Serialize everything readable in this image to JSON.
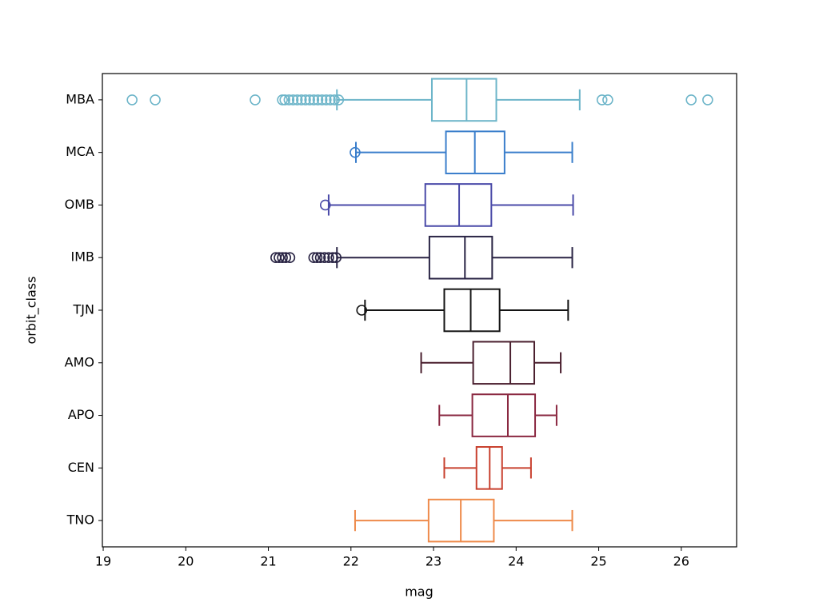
{
  "chart_data": {
    "type": "boxplot",
    "orientation": "horizontal",
    "xlabel": "mag",
    "ylabel": "orbit_class",
    "xlim": [
      18.99,
      26.67
    ],
    "xticks": [
      19,
      20,
      21,
      22,
      23,
      24,
      25,
      26
    ],
    "categories": [
      "MBA",
      "MCA",
      "OMB",
      "IMB",
      "TJN",
      "AMO",
      "APO",
      "CEN",
      "TNO"
    ],
    "boxes": [
      {
        "color": "#6db5c9",
        "whislo": 21.83,
        "q1": 22.98,
        "med": 23.4,
        "q3": 23.76,
        "whishi": 24.77,
        "fliers": [
          19.35,
          19.63,
          20.84,
          21.17,
          21.2,
          21.25,
          21.3,
          21.35,
          21.4,
          21.45,
          21.5,
          21.55,
          21.6,
          21.65,
          21.7,
          21.75,
          21.8,
          21.85,
          25.04,
          25.11,
          26.12,
          26.32
        ]
      },
      {
        "color": "#3a7ecb",
        "whislo": 22.06,
        "q1": 23.15,
        "med": 23.5,
        "q3": 23.86,
        "whishi": 24.68,
        "fliers": [
          22.05
        ]
      },
      {
        "color": "#4a4aa8",
        "whislo": 21.73,
        "q1": 22.9,
        "med": 23.31,
        "q3": 23.7,
        "whishi": 24.69,
        "fliers": [
          21.69
        ]
      },
      {
        "color": "#2a2545",
        "whislo": 21.83,
        "q1": 22.95,
        "med": 23.38,
        "q3": 23.71,
        "whishi": 24.68,
        "fliers": [
          21.09,
          21.13,
          21.17,
          21.21,
          21.26,
          21.55,
          21.59,
          21.63,
          21.68,
          21.73,
          21.78,
          21.82
        ]
      },
      {
        "color": "#141414",
        "whislo": 22.17,
        "q1": 23.13,
        "med": 23.45,
        "q3": 23.8,
        "whishi": 24.63,
        "fliers": [
          22.13
        ]
      },
      {
        "color": "#4a1f2e",
        "whislo": 22.85,
        "q1": 23.48,
        "med": 23.93,
        "q3": 24.22,
        "whishi": 24.54,
        "fliers": []
      },
      {
        "color": "#8a2841",
        "whislo": 23.07,
        "q1": 23.47,
        "med": 23.9,
        "q3": 24.23,
        "whishi": 24.49,
        "fliers": []
      },
      {
        "color": "#c8402e",
        "whislo": 23.13,
        "q1": 23.52,
        "med": 23.68,
        "q3": 23.83,
        "whishi": 24.18,
        "fliers": []
      },
      {
        "color": "#ee8a4a",
        "whislo": 22.05,
        "q1": 22.94,
        "med": 23.33,
        "q3": 23.73,
        "whishi": 24.68,
        "fliers": []
      }
    ]
  }
}
